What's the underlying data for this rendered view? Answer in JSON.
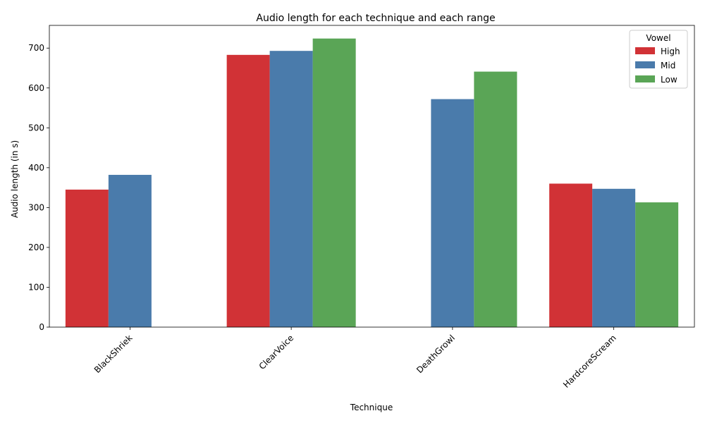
{
  "chart_data": {
    "type": "bar",
    "title": "Audio length for each technique and each range",
    "xlabel": "Technique",
    "ylabel": "Audio length (in s)",
    "categories": [
      "BlackShriek",
      "ClearVoice",
      "DeathGrowl",
      "HardcoreScream"
    ],
    "series": [
      {
        "name": "High",
        "color": "#d13236",
        "values": [
          345,
          683,
          null,
          360
        ]
      },
      {
        "name": "Mid",
        "color": "#4a7bab",
        "values": [
          382,
          693,
          572,
          347
        ]
      },
      {
        "name": "Low",
        "color": "#5aa556",
        "values": [
          null,
          724,
          641,
          313
        ]
      }
    ],
    "ylim": [
      0,
      757
    ],
    "yticks": [
      0,
      100,
      200,
      300,
      400,
      500,
      600,
      700
    ],
    "legend": {
      "title": "Vowel",
      "placement": "top-right"
    },
    "grid": false
  }
}
